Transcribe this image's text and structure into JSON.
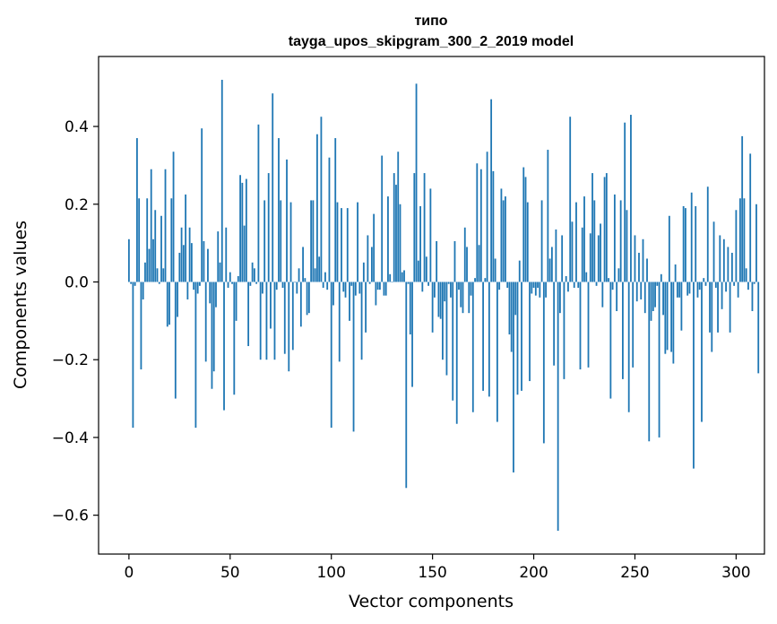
{
  "chart_data": {
    "type": "bar",
    "title": "типо",
    "subtitle": "tayga_upos_skipgram_300_2_2019 model",
    "xlabel": "Vector components",
    "ylabel": "Components values",
    "xlim": [
      -15,
      314
    ],
    "ylim": [
      -0.7,
      0.58
    ],
    "xticks": [
      0,
      50,
      100,
      150,
      200,
      250,
      300
    ],
    "xtick_labels": [
      "0",
      "50",
      "100",
      "150",
      "200",
      "250",
      "300"
    ],
    "yticks": [
      -0.6,
      -0.4,
      -0.2,
      0.0,
      0.2,
      0.4
    ],
    "ytick_labels": [
      "−0.6",
      "−0.4",
      "−0.2",
      "0.0",
      "0.2",
      "0.4"
    ],
    "bar_color": "#1f77b4",
    "grid": false,
    "values": [
      0.11,
      -0.005,
      -0.375,
      -0.01,
      0.37,
      0.215,
      -0.225,
      -0.045,
      0.05,
      0.215,
      0.085,
      0.29,
      0.11,
      0.185,
      0.035,
      -0.005,
      0.17,
      0.035,
      0.29,
      -0.115,
      -0.11,
      0.215,
      0.335,
      -0.3,
      -0.09,
      0.075,
      0.14,
      0.095,
      0.225,
      -0.045,
      0.14,
      0.1,
      -0.02,
      -0.375,
      -0.03,
      -0.01,
      0.395,
      0.105,
      -0.205,
      0.085,
      -0.055,
      -0.275,
      -0.23,
      -0.065,
      0.13,
      0.05,
      0.52,
      -0.33,
      0.14,
      -0.015,
      0.025,
      -0.005,
      -0.29,
      -0.1,
      0.015,
      0.275,
      0.255,
      0.145,
      0.265,
      -0.165,
      -0.01,
      0.05,
      0.035,
      -0.005,
      0.405,
      -0.2,
      -0.03,
      0.21,
      -0.2,
      0.28,
      -0.12,
      0.485,
      -0.2,
      -0.02,
      0.37,
      0.21,
      -0.015,
      -0.185,
      0.315,
      -0.23,
      0.205,
      -0.175,
      0.0,
      -0.03,
      0.035,
      -0.115,
      0.09,
      0.01,
      -0.085,
      -0.08,
      0.21,
      0.21,
      0.035,
      0.38,
      0.065,
      0.425,
      -0.015,
      0.025,
      -0.02,
      0.32,
      -0.375,
      -0.06,
      0.37,
      0.205,
      -0.205,
      0.19,
      -0.025,
      -0.04,
      0.19,
      -0.1,
      -0.01,
      -0.385,
      -0.035,
      0.205,
      -0.03,
      -0.2,
      0.05,
      -0.13,
      0.12,
      -0.005,
      0.09,
      0.175,
      -0.06,
      -0.02,
      -0.02,
      0.325,
      -0.035,
      -0.035,
      0.22,
      0.02,
      0.0,
      0.28,
      0.25,
      0.335,
      0.2,
      0.025,
      0.03,
      -0.53,
      -0.005,
      -0.135,
      -0.27,
      0.28,
      0.51,
      0.055,
      0.195,
      -0.025,
      0.28,
      0.065,
      -0.01,
      0.24,
      -0.13,
      -0.04,
      0.105,
      -0.09,
      -0.095,
      -0.2,
      -0.05,
      -0.24,
      -0.005,
      -0.04,
      -0.305,
      0.105,
      -0.365,
      -0.02,
      -0.065,
      -0.08,
      0.14,
      0.09,
      -0.08,
      -0.035,
      -0.335,
      0.01,
      0.305,
      0.095,
      0.29,
      -0.28,
      0.01,
      0.335,
      -0.295,
      0.47,
      0.285,
      0.06,
      -0.36,
      -0.02,
      0.24,
      0.21,
      0.22,
      -0.015,
      -0.135,
      -0.18,
      -0.49,
      -0.085,
      -0.29,
      0.055,
      -0.28,
      0.295,
      0.27,
      0.205,
      -0.255,
      -0.03,
      -0.015,
      -0.035,
      -0.015,
      -0.04,
      0.21,
      -0.415,
      -0.04,
      0.34,
      0.06,
      0.09,
      -0.215,
      0.135,
      -0.64,
      -0.08,
      0.12,
      -0.25,
      0.015,
      -0.025,
      0.425,
      0.155,
      -0.015,
      0.205,
      -0.015,
      -0.225,
      0.14,
      0.22,
      0.025,
      -0.22,
      0.125,
      0.28,
      0.21,
      -0.01,
      0.12,
      0.15,
      -0.065,
      0.27,
      0.28,
      0.01,
      -0.3,
      -0.02,
      0.225,
      -0.075,
      0.035,
      0.21,
      -0.25,
      0.41,
      0.185,
      -0.335,
      0.43,
      -0.22,
      0.12,
      -0.05,
      0.075,
      -0.045,
      0.11,
      -0.08,
      0.06,
      -0.41,
      -0.1,
      -0.075,
      -0.065,
      -0.01,
      -0.4,
      0.02,
      -0.085,
      -0.185,
      -0.175,
      0.17,
      -0.18,
      -0.21,
      0.045,
      -0.04,
      -0.04,
      -0.125,
      0.195,
      0.19,
      -0.035,
      -0.03,
      0.23,
      -0.48,
      0.195,
      -0.04,
      -0.02,
      -0.36,
      0.01,
      -0.01,
      0.245,
      -0.13,
      -0.18,
      0.155,
      -0.015,
      -0.13,
      0.12,
      -0.07,
      0.11,
      -0.025,
      0.09,
      -0.13,
      0.075,
      -0.01,
      0.185,
      -0.04,
      0.215,
      0.375,
      0.215,
      0.035,
      -0.02,
      0.33,
      -0.075,
      -0.005,
      0.2,
      -0.235
    ]
  }
}
